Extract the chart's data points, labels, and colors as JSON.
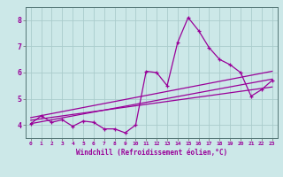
{
  "xlabel": "Windchill (Refroidissement éolien,°C)",
  "bg_color": "#cce8e8",
  "grid_color": "#aacccc",
  "line_color": "#990099",
  "xlim": [
    -0.5,
    23.5
  ],
  "ylim": [
    3.5,
    8.5
  ],
  "yticks": [
    4,
    5,
    6,
    7,
    8
  ],
  "xticks": [
    0,
    1,
    2,
    3,
    4,
    5,
    6,
    7,
    8,
    9,
    10,
    11,
    12,
    13,
    14,
    15,
    16,
    17,
    18,
    19,
    20,
    21,
    22,
    23
  ],
  "series": [
    [
      0,
      4.05
    ],
    [
      1,
      4.35
    ],
    [
      2,
      4.1
    ],
    [
      3,
      4.2
    ],
    [
      4,
      3.95
    ],
    [
      5,
      4.15
    ],
    [
      6,
      4.1
    ],
    [
      7,
      3.85
    ],
    [
      8,
      3.85
    ],
    [
      9,
      3.7
    ],
    [
      10,
      4.0
    ],
    [
      11,
      6.05
    ],
    [
      12,
      6.0
    ],
    [
      13,
      5.5
    ],
    [
      14,
      7.15
    ],
    [
      15,
      8.1
    ],
    [
      16,
      7.6
    ],
    [
      17,
      6.95
    ],
    [
      18,
      6.5
    ],
    [
      19,
      6.3
    ],
    [
      20,
      6.0
    ],
    [
      21,
      5.1
    ],
    [
      22,
      5.35
    ],
    [
      23,
      5.7
    ]
  ],
  "trend_lines": [
    [
      [
        0,
        4.05
      ],
      [
        23,
        5.75
      ]
    ],
    [
      [
        0,
        4.18
      ],
      [
        23,
        5.45
      ]
    ],
    [
      [
        0,
        4.28
      ],
      [
        23,
        6.05
      ]
    ]
  ]
}
